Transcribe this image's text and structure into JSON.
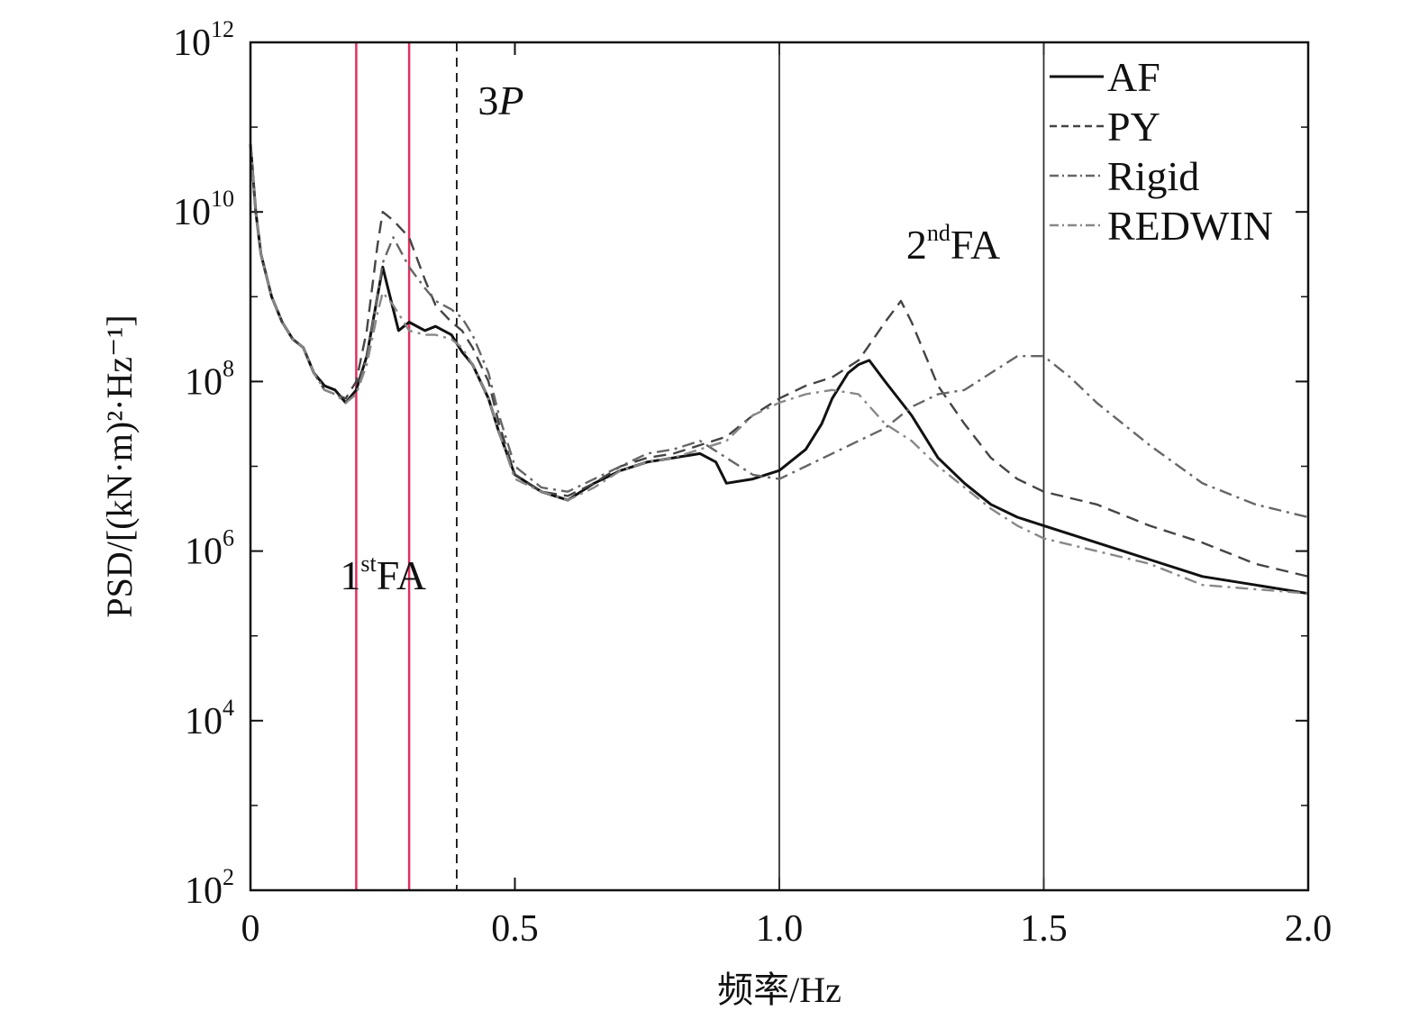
{
  "chart_data": {
    "type": "line",
    "xlabel": "频率/Hz",
    "ylabel": "PSD/[(kN·m)²·Hz⁻¹]",
    "xlim": [
      0,
      2.0
    ],
    "ylim_log10": [
      2,
      12
    ],
    "y_scale": "log",
    "x_ticks": [
      "0",
      "0.5",
      "1.0",
      "1.5",
      "2.0"
    ],
    "y_tick_exponents": [
      "2",
      "4",
      "6",
      "8",
      "10",
      "12"
    ],
    "y_tick_base": "10",
    "legend_position": "top-right",
    "grid": false,
    "series": [
      {
        "name": "AF",
        "style": "solid",
        "color": "#111111",
        "x": [
          0,
          0.01,
          0.02,
          0.04,
          0.06,
          0.08,
          0.1,
          0.12,
          0.14,
          0.16,
          0.18,
          0.2,
          0.22,
          0.24,
          0.25,
          0.26,
          0.28,
          0.3,
          0.33,
          0.35,
          0.38,
          0.4,
          0.42,
          0.45,
          0.47,
          0.5,
          0.55,
          0.6,
          0.65,
          0.7,
          0.75,
          0.8,
          0.85,
          0.88,
          0.9,
          0.95,
          1.0,
          1.05,
          1.08,
          1.1,
          1.13,
          1.15,
          1.17,
          1.2,
          1.25,
          1.3,
          1.35,
          1.4,
          1.45,
          1.5,
          1.55,
          1.6,
          1.7,
          1.8,
          1.9,
          2.0
        ],
        "y_log10": [
          10.8,
          10.0,
          9.5,
          9.0,
          8.7,
          8.5,
          8.4,
          8.1,
          7.95,
          7.9,
          7.75,
          7.9,
          8.3,
          9.0,
          9.35,
          9.1,
          8.6,
          8.7,
          8.6,
          8.65,
          8.55,
          8.35,
          8.2,
          7.8,
          7.4,
          6.9,
          6.7,
          6.6,
          6.8,
          6.95,
          7.05,
          7.1,
          7.15,
          7.05,
          6.8,
          6.85,
          6.95,
          7.2,
          7.5,
          7.8,
          8.1,
          8.2,
          8.25,
          8.0,
          7.6,
          7.1,
          6.8,
          6.55,
          6.4,
          6.3,
          6.2,
          6.1,
          5.9,
          5.7,
          5.6,
          5.5
        ]
      },
      {
        "name": "PY",
        "style": "dashed",
        "color": "#444444",
        "x": [
          0,
          0.01,
          0.02,
          0.04,
          0.06,
          0.08,
          0.1,
          0.12,
          0.14,
          0.16,
          0.18,
          0.2,
          0.22,
          0.24,
          0.25,
          0.27,
          0.3,
          0.33,
          0.35,
          0.38,
          0.4,
          0.42,
          0.45,
          0.47,
          0.5,
          0.55,
          0.6,
          0.65,
          0.7,
          0.75,
          0.8,
          0.85,
          0.9,
          0.95,
          1.0,
          1.05,
          1.1,
          1.15,
          1.2,
          1.23,
          1.25,
          1.3,
          1.35,
          1.4,
          1.45,
          1.5,
          1.6,
          1.7,
          1.8,
          1.9,
          2.0
        ],
        "y_log10": [
          10.8,
          10.0,
          9.5,
          9.0,
          8.7,
          8.5,
          8.4,
          8.1,
          7.9,
          7.85,
          7.8,
          8.0,
          8.6,
          9.6,
          10.0,
          9.9,
          9.7,
          9.2,
          8.9,
          8.7,
          8.6,
          8.4,
          8.0,
          7.5,
          6.9,
          6.7,
          6.65,
          6.8,
          7.0,
          7.1,
          7.15,
          7.25,
          7.35,
          7.6,
          7.8,
          7.95,
          8.05,
          8.25,
          8.7,
          8.95,
          8.7,
          7.95,
          7.5,
          7.1,
          6.85,
          6.7,
          6.55,
          6.3,
          6.1,
          5.85,
          5.7
        ]
      },
      {
        "name": "Rigid",
        "style": "dashdot",
        "color": "#666666",
        "x": [
          0,
          0.01,
          0.02,
          0.04,
          0.06,
          0.08,
          0.1,
          0.12,
          0.14,
          0.16,
          0.18,
          0.2,
          0.22,
          0.24,
          0.25,
          0.27,
          0.3,
          0.33,
          0.35,
          0.38,
          0.4,
          0.42,
          0.45,
          0.47,
          0.5,
          0.55,
          0.6,
          0.65,
          0.7,
          0.75,
          0.8,
          0.85,
          0.9,
          0.95,
          1.0,
          1.05,
          1.1,
          1.15,
          1.2,
          1.25,
          1.3,
          1.35,
          1.4,
          1.45,
          1.5,
          1.55,
          1.6,
          1.7,
          1.8,
          1.9,
          2.0
        ],
        "y_log10": [
          10.8,
          10.0,
          9.5,
          9.0,
          8.7,
          8.5,
          8.4,
          8.1,
          7.9,
          7.85,
          7.75,
          7.85,
          8.3,
          9.0,
          9.4,
          9.7,
          9.35,
          9.1,
          8.95,
          8.85,
          8.75,
          8.55,
          8.1,
          7.6,
          7.0,
          6.75,
          6.7,
          6.85,
          7.0,
          7.15,
          7.2,
          7.3,
          7.1,
          6.9,
          6.85,
          7.0,
          7.15,
          7.3,
          7.45,
          7.7,
          7.85,
          7.9,
          8.1,
          8.3,
          8.3,
          8.05,
          7.75,
          7.25,
          6.8,
          6.55,
          6.4
        ]
      },
      {
        "name": "REDWIN",
        "style": "dashdot",
        "color": "#888888",
        "x": [
          0,
          0.01,
          0.02,
          0.04,
          0.06,
          0.08,
          0.1,
          0.12,
          0.14,
          0.16,
          0.18,
          0.2,
          0.22,
          0.24,
          0.25,
          0.27,
          0.3,
          0.33,
          0.35,
          0.38,
          0.4,
          0.42,
          0.45,
          0.47,
          0.5,
          0.55,
          0.6,
          0.65,
          0.7,
          0.75,
          0.8,
          0.85,
          0.9,
          0.95,
          1.0,
          1.05,
          1.1,
          1.15,
          1.2,
          1.25,
          1.3,
          1.35,
          1.4,
          1.45,
          1.5,
          1.6,
          1.7,
          1.8,
          1.9,
          2.0
        ],
        "y_log10": [
          10.8,
          10.0,
          9.5,
          9.0,
          8.7,
          8.5,
          8.4,
          8.1,
          7.9,
          7.85,
          7.75,
          7.85,
          8.2,
          8.8,
          9.05,
          8.9,
          8.6,
          8.55,
          8.55,
          8.5,
          8.4,
          8.2,
          7.8,
          7.4,
          6.85,
          6.7,
          6.6,
          6.75,
          6.95,
          7.05,
          7.1,
          7.2,
          7.3,
          7.6,
          7.75,
          7.85,
          7.9,
          7.85,
          7.5,
          7.3,
          7.0,
          6.75,
          6.5,
          6.3,
          6.15,
          6.0,
          5.85,
          5.6,
          5.55,
          5.5
        ]
      }
    ],
    "vertical_lines": [
      {
        "x": 0.2,
        "style": "solid",
        "color": "#e03060"
      },
      {
        "x": 0.3,
        "style": "solid",
        "color": "#e03060"
      },
      {
        "x": 0.39,
        "style": "dashed",
        "color": "#111111"
      },
      {
        "x": 1.0,
        "style": "solid",
        "color": "#333333"
      },
      {
        "x": 1.5,
        "style": "solid",
        "color": "#333333"
      }
    ],
    "annotations": [
      {
        "id": "first-fa",
        "num": "1",
        "sup": "st",
        "rest": "FA"
      },
      {
        "id": "three-p",
        "num": "3",
        "italic": "P"
      },
      {
        "id": "second-fa",
        "num": "2",
        "sup": "nd",
        "rest": "FA"
      }
    ]
  }
}
